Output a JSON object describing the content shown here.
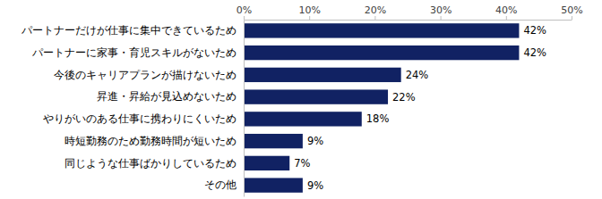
{
  "chart_data": {
    "type": "bar",
    "orientation": "horizontal",
    "categories": [
      "パートナーだけが仕事に集中できているため",
      "パートナーに家事・育児スキルがないため",
      "今後のキャリアプランが描けないため",
      "昇進・昇給が見込めないため",
      "やりがいのある仕事に携わりにくいため",
      "時短勤務のため勤務時間が短いため",
      "同じような仕事ばかりしているため",
      "その他"
    ],
    "values": [
      42,
      42,
      24,
      22,
      18,
      9,
      7,
      9
    ],
    "value_labels": [
      "42%",
      "42%",
      "24%",
      "22%",
      "18%",
      "9%",
      "7%",
      "9%"
    ],
    "data_labels": true,
    "color": "#112263",
    "xlim": [
      0,
      50
    ],
    "xticks": [
      {
        "value": 0,
        "label": "0%"
      },
      {
        "value": 10,
        "label": "10%"
      },
      {
        "value": 20,
        "label": "20%"
      },
      {
        "value": 30,
        "label": "30%"
      },
      {
        "value": 40,
        "label": "40%"
      },
      {
        "value": 50,
        "label": "50%"
      }
    ],
    "grid": false
  }
}
